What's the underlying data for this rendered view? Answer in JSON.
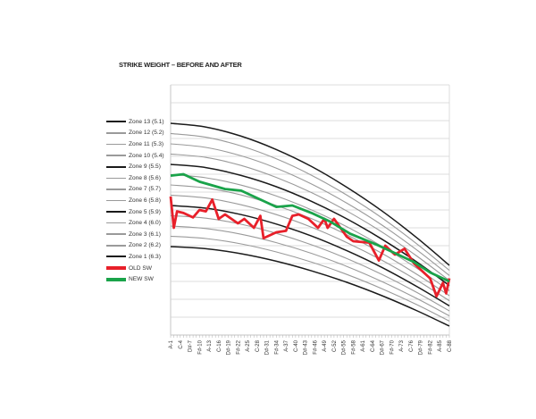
{
  "chart_data": {
    "type": "line",
    "title": "STRIKE WEIGHT – BEFORE AND AFTER",
    "xlabel": "",
    "ylabel": "",
    "ylim": [
      0,
      14
    ],
    "xlim": [
      1,
      88
    ],
    "grid": "horizontal",
    "legend_position": "left",
    "x_tick_labels": [
      "A-1",
      "C-4",
      "D#-7",
      "F#-10",
      "A-13",
      "C-16",
      "D#-19",
      "F#-22",
      "A-25",
      "C-28",
      "D#-31",
      "F#-34",
      "A-37",
      "C-40",
      "D#-43",
      "F#-46",
      "A-49",
      "C-52",
      "D#-55",
      "F#-58",
      "A-61",
      "C-64",
      "D#-67",
      "F#-70",
      "A-73",
      "C-76",
      "D#-79",
      "F#-82",
      "A-85",
      "C-88"
    ],
    "zone_x": [
      1,
      12,
      23,
      34,
      45,
      56,
      67,
      78,
      88
    ],
    "zones": [
      {
        "name": "Zone 13 (5.1)",
        "color": "#1a1a1a",
        "values": [
          11.85,
          11.64,
          11.13,
          10.38,
          9.43,
          8.27,
          6.94,
          5.42,
          3.9
        ]
      },
      {
        "name": "Zone 12 (5.2)",
        "color": "#9a9a9a",
        "values": [
          11.28,
          11.07,
          10.58,
          9.86,
          8.94,
          7.83,
          6.55,
          5.08,
          3.62
        ]
      },
      {
        "name": "Zone 11 (5.3)",
        "color": "#9a9a9a",
        "values": [
          10.7,
          10.5,
          10.03,
          9.34,
          8.45,
          7.38,
          6.15,
          4.74,
          3.33
        ]
      },
      {
        "name": "Zone 10 (5.4)",
        "color": "#9a9a9a",
        "values": [
          10.13,
          9.94,
          9.49,
          8.82,
          7.97,
          6.94,
          5.76,
          4.4,
          3.05
        ]
      },
      {
        "name": "Zone 9 (5.5)",
        "color": "#1a1a1a",
        "values": [
          9.55,
          9.37,
          8.93,
          8.3,
          7.48,
          6.5,
          5.36,
          4.07,
          2.77
        ]
      },
      {
        "name": "Zone 8 (5.6)",
        "color": "#9a9a9a",
        "values": [
          8.98,
          8.8,
          8.39,
          7.78,
          7.0,
          6.06,
          4.96,
          3.72,
          2.48
        ]
      },
      {
        "name": "Zone 7 (5.7)",
        "color": "#9a9a9a",
        "values": [
          8.4,
          8.23,
          7.84,
          7.25,
          6.51,
          5.61,
          4.57,
          3.38,
          2.2
        ]
      },
      {
        "name": "Zone 6 (5.8)",
        "color": "#9a9a9a",
        "values": [
          7.83,
          7.67,
          7.29,
          6.74,
          6.03,
          5.17,
          4.18,
          3.05,
          1.92
        ]
      },
      {
        "name": "Zone 5 (5.9)",
        "color": "#1a1a1a",
        "values": [
          7.25,
          7.1,
          6.74,
          6.21,
          5.54,
          4.72,
          3.78,
          2.7,
          1.63
        ]
      },
      {
        "name": "Zone 4 (6.0)",
        "color": "#9a9a9a",
        "values": [
          6.68,
          6.54,
          6.2,
          5.69,
          5.05,
          4.28,
          3.39,
          2.37,
          1.35
        ]
      },
      {
        "name": "Zone 3 (6.1)",
        "color": "#9a9a9a",
        "values": [
          6.1,
          5.96,
          5.64,
          5.17,
          4.57,
          3.84,
          2.99,
          2.03,
          1.07
        ]
      },
      {
        "name": "Zone 2 (6.2)",
        "color": "#9a9a9a",
        "values": [
          5.53,
          5.4,
          5.1,
          4.65,
          4.08,
          3.39,
          2.59,
          1.69,
          0.78
        ]
      },
      {
        "name": "Zone 1 (6.3)",
        "color": "#1a1a1a",
        "values": [
          4.95,
          4.83,
          4.55,
          4.13,
          3.59,
          2.95,
          2.2,
          1.35,
          0.5
        ]
      }
    ],
    "series": [
      {
        "name": "OLD SW",
        "color": "#e8202a",
        "x": [
          1,
          2,
          3,
          5,
          8,
          10,
          12,
          14,
          16,
          18,
          22,
          24,
          27,
          29,
          30,
          34,
          37,
          39,
          41,
          44,
          47,
          49,
          50,
          52,
          56,
          58,
          63,
          66,
          68,
          71,
          74,
          77,
          80,
          82,
          84,
          86,
          87,
          88
        ],
        "values": [
          7.75,
          6.0,
          6.92,
          6.83,
          6.58,
          7.0,
          6.92,
          7.58,
          6.5,
          6.75,
          6.25,
          6.5,
          6.0,
          6.67,
          5.42,
          5.75,
          5.83,
          6.67,
          6.75,
          6.5,
          6.0,
          6.5,
          6.0,
          6.5,
          5.5,
          5.25,
          5.17,
          4.17,
          5.0,
          4.5,
          4.83,
          4.0,
          3.5,
          3.17,
          2.17,
          2.92,
          2.33,
          3.17
        ]
      },
      {
        "name": "NEW SW",
        "color": "#1aa34a",
        "x": [
          1,
          5,
          10,
          18,
          23,
          27,
          34,
          39,
          45,
          51,
          57,
          65,
          70,
          77,
          82,
          88
        ],
        "values": [
          8.92,
          9.0,
          8.58,
          8.17,
          8.08,
          7.75,
          7.17,
          7.25,
          6.83,
          6.33,
          5.67,
          5.08,
          4.67,
          4.08,
          3.5,
          3.0
        ]
      }
    ]
  }
}
